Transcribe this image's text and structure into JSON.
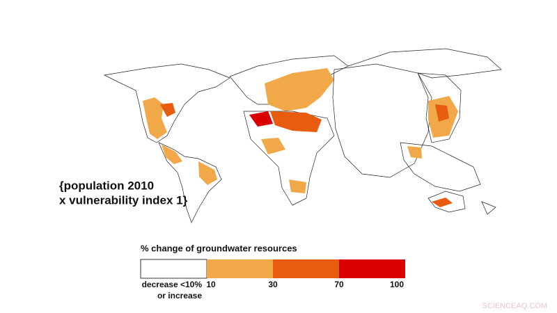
{
  "map_label": {
    "line1": "{population 2010",
    "line2": "x vulnerability index 1}"
  },
  "legend": {
    "title": "% change of groundwater resources",
    "colors": [
      "#ffffff",
      "#f0a848",
      "#e85c10",
      "#d80000"
    ],
    "low_label": {
      "line1": "decrease <10%",
      "line2": "or increase"
    },
    "ticks": [
      "10",
      "30",
      "70",
      "100"
    ]
  },
  "watermark": "SCIENCEAQ.COM"
}
